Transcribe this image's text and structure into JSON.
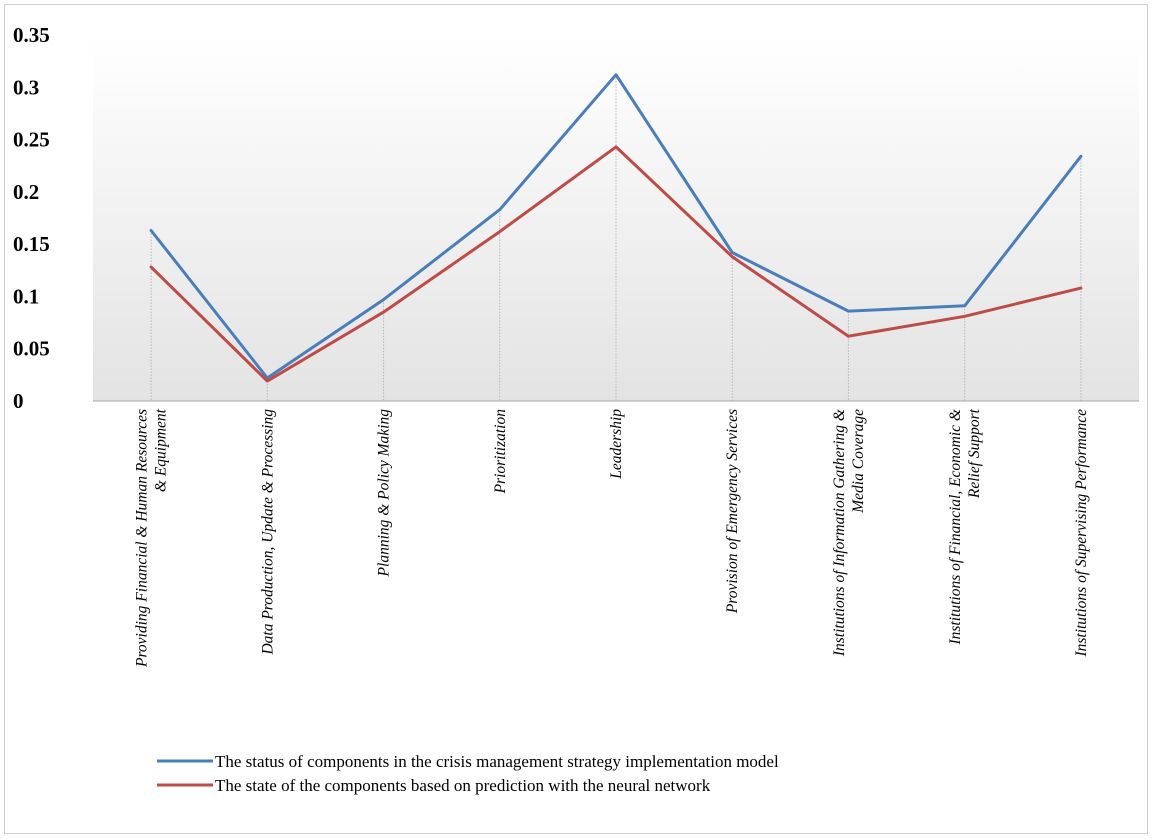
{
  "chart_data": {
    "type": "line",
    "categories": [
      [
        "Providing Financial & Human Resources",
        "& Equipment"
      ],
      [
        "Data Production, Update & Processing"
      ],
      [
        "Planning & Policy Making"
      ],
      [
        "Prioritization"
      ],
      [
        "Leadership"
      ],
      [
        "Provision of Emergency Services"
      ],
      [
        "Institutions of Information Gathering &",
        "Media Coverage"
      ],
      [
        "Institutions of Financial, Economic &",
        "Relief Support"
      ],
      [
        "Institutions of Supervising Performance"
      ]
    ],
    "series": [
      {
        "name": "The status of components in the crisis management strategy implementation model",
        "color": "#4a7ebb",
        "values": [
          0.163,
          0.022,
          0.097,
          0.183,
          0.312,
          0.142,
          0.086,
          0.091,
          0.234
        ]
      },
      {
        "name": "The state of the components based on prediction with the neural network",
        "color": "#be4b48",
        "values": [
          0.128,
          0.019,
          0.085,
          0.162,
          0.243,
          0.138,
          0.062,
          0.081,
          0.108
        ]
      }
    ],
    "yticks": [
      "0",
      "0.05",
      "0.1",
      "0.15",
      "0.2",
      "0.25",
      "0.3",
      "0.35"
    ],
    "ylim": [
      0,
      0.35
    ],
    "legend_position": "bottom",
    "grid": "vertical drop lines"
  }
}
